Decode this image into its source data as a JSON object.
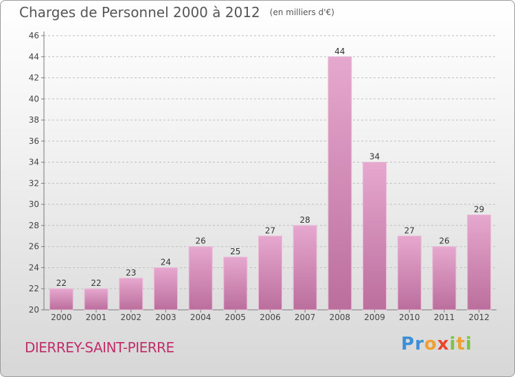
{
  "header": {
    "title": "Charges de Personnel 2000 à 2012",
    "unit": "(en milliers d'€)"
  },
  "commune": "DIERREY-SAINT-PIERRE",
  "logo": {
    "letters": [
      "P",
      "r",
      "o",
      "x",
      "i",
      "t",
      "i"
    ],
    "colors": [
      "#3a8fd8",
      "#3a8fd8",
      "#f0a030",
      "#e8452c",
      "#7cc243",
      "#f0a030",
      "#7cc243"
    ]
  },
  "colors": {
    "bar": "#d98fb9",
    "bar_light": "#e6a8cf",
    "bar_dark": "#bb6e9c",
    "grid": "#bdbdbd"
  },
  "chart_data": {
    "type": "bar",
    "categories": [
      "2000",
      "2001",
      "2002",
      "2003",
      "2004",
      "2005",
      "2006",
      "2007",
      "2008",
      "2009",
      "2010",
      "2011",
      "2012"
    ],
    "values": [
      22,
      22,
      23,
      24,
      26,
      25,
      27,
      28,
      44,
      34,
      27,
      26,
      29
    ],
    "yticks": [
      20,
      22,
      24,
      26,
      28,
      30,
      32,
      34,
      36,
      38,
      40,
      42,
      44,
      46
    ],
    "ylim": [
      20,
      46
    ],
    "grid": true,
    "legend": "none",
    "title": "Charges de Personnel 2000 à 2012",
    "ylabel": "",
    "xlabel": ""
  }
}
